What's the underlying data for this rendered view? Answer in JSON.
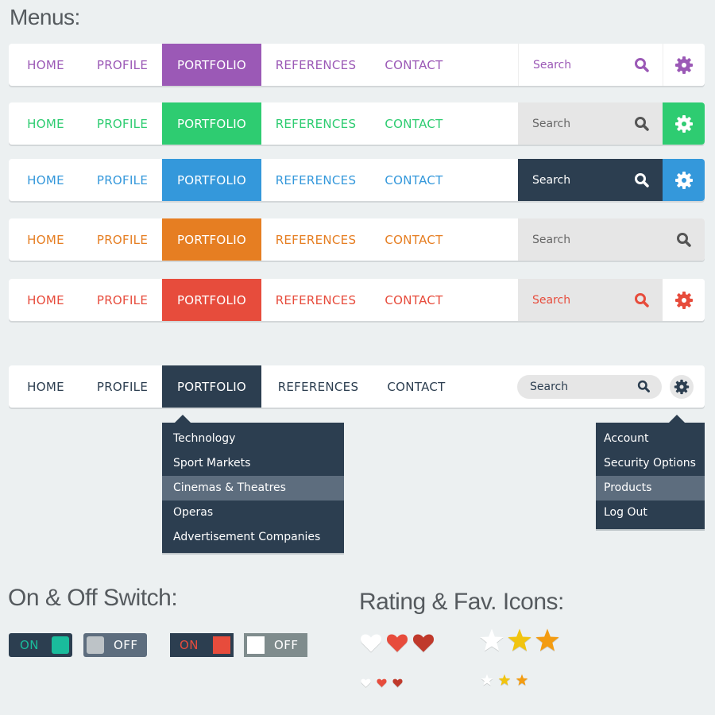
{
  "titles": {
    "menus": "Menus:",
    "switch": "On & Off Switch:",
    "rating": "Rating & Fav. Icons:"
  },
  "nav_labels": [
    "HOME",
    "PROFILE",
    "PORTFOLIO",
    "REFERENCES",
    "CONTACT"
  ],
  "search_placeholder": "Search",
  "menus": [
    {
      "accent": "#9b59b6",
      "search_bg": "#ffffff",
      "search_text": "#9b59b6",
      "gear_bg": "#ffffff",
      "gear_color": "#9b59b6",
      "variant": "purple"
    },
    {
      "accent": "#2ecc71",
      "search_bg": "#e6e6e6",
      "search_text": "#666666",
      "gear_bg": "#2ecc71",
      "gear_color": "#ffffff",
      "variant": "green"
    },
    {
      "accent": "#3498db",
      "search_bg": "#2c3e50",
      "search_text": "#ffffff",
      "gear_bg": "#3498db",
      "gear_color": "#ffffff",
      "variant": "blue"
    },
    {
      "accent": "#e67e22",
      "search_bg": "#e6e6e6",
      "search_text": "#666666",
      "gear_bg": null,
      "gear_color": null,
      "variant": "orange"
    },
    {
      "accent": "#e74c3c",
      "search_bg": "#e6e6e6",
      "search_text": "#e74c3c",
      "gear_bg": "#ffffff",
      "gear_color": "#e74c3c",
      "variant": "red"
    },
    {
      "accent": "#2c3e50",
      "search_bg": "#e6e6e6",
      "search_text": "#2c3e50",
      "gear_bg": "#ffffff",
      "gear_color": "#2c3e50",
      "variant": "dark"
    }
  ],
  "portfolio_dropdown": {
    "items": [
      "Technology",
      "Sport Markets",
      "Cinemas & Theatres",
      "Operas",
      "Advertisement Companies"
    ],
    "highlighted_index": 2
  },
  "settings_dropdown": {
    "items": [
      "Account",
      "Security Options",
      "Products",
      "Log Out"
    ],
    "highlighted_index": 2
  },
  "switches": [
    {
      "label": "ON",
      "state": "on",
      "bg": "#2c3e50",
      "knob": "#1abc9c",
      "text": "#1abc9c"
    },
    {
      "label": "OFF",
      "state": "off",
      "bg": "#5d6d7e",
      "knob": "#bdc3c7",
      "text": "#ffffff"
    },
    {
      "label": "ON",
      "state": "on",
      "bg": "#2c3e50",
      "knob": "#e74c3c",
      "text": "#e74c3c"
    },
    {
      "label": "OFF",
      "state": "off",
      "bg": "#7f8c8d",
      "knob": "#ffffff",
      "text": "#ffffff"
    }
  ],
  "rating_icons": {
    "hearts": [
      {
        "state": "empty",
        "color": "#ffffff"
      },
      {
        "state": "filled",
        "color": "#e74c3c"
      },
      {
        "state": "filled-dark",
        "color": "#c0392b"
      }
    ],
    "stars": [
      {
        "state": "empty",
        "color": "#ffffff"
      },
      {
        "state": "filled",
        "color": "#f1c40f"
      },
      {
        "state": "filled-dark",
        "color": "#f39c12"
      }
    ]
  }
}
